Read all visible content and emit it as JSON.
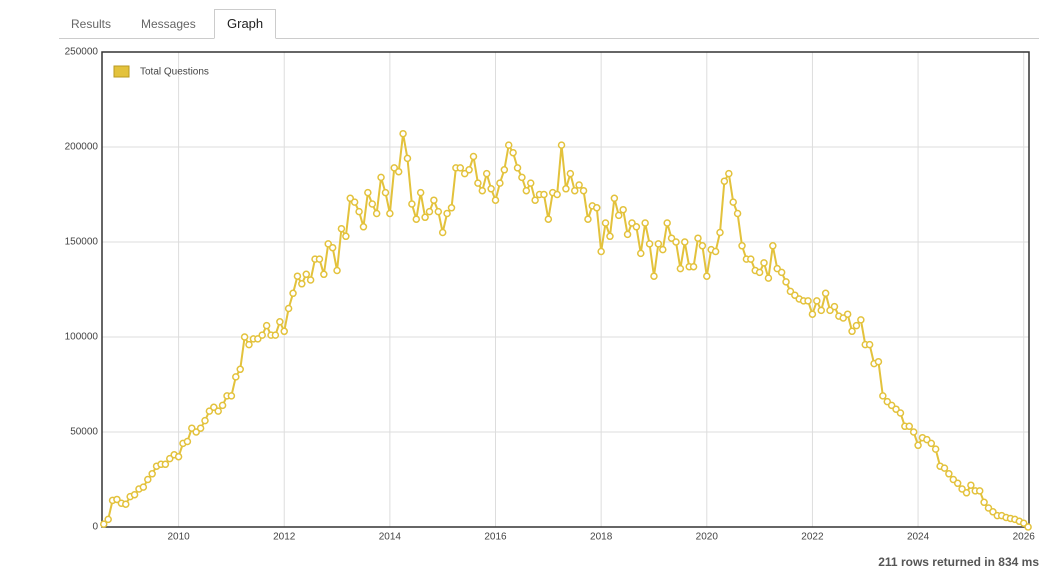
{
  "tabs": [
    "Results",
    "Messages",
    "Graph"
  ],
  "chart_data": {
    "type": "line",
    "x": [
      2008.583,
      2008.667,
      2008.75,
      2008.833,
      2008.917,
      2009,
      2009.083,
      2009.167,
      2009.25,
      2009.333,
      2009.417,
      2009.5,
      2009.583,
      2009.667,
      2009.75,
      2009.833,
      2009.917,
      2010,
      2010.083,
      2010.167,
      2010.25,
      2010.333,
      2010.417,
      2010.5,
      2010.583,
      2010.667,
      2010.75,
      2010.833,
      2010.917,
      2011,
      2011.083,
      2011.167,
      2011.25,
      2011.333,
      2011.417,
      2011.5,
      2011.583,
      2011.667,
      2011.75,
      2011.833,
      2011.917,
      2012,
      2012.083,
      2012.167,
      2012.25,
      2012.333,
      2012.417,
      2012.5,
      2012.583,
      2012.667,
      2012.75,
      2012.833,
      2012.917,
      2013,
      2013.083,
      2013.167,
      2013.25,
      2013.333,
      2013.417,
      2013.5,
      2013.583,
      2013.667,
      2013.75,
      2013.833,
      2013.917,
      2014,
      2014.083,
      2014.167,
      2014.25,
      2014.333,
      2014.417,
      2014.5,
      2014.583,
      2014.667,
      2014.75,
      2014.833,
      2014.917,
      2015,
      2015.083,
      2015.167,
      2015.25,
      2015.333,
      2015.417,
      2015.5,
      2015.583,
      2015.667,
      2015.75,
      2015.833,
      2015.917,
      2016,
      2016.083,
      2016.167,
      2016.25,
      2016.333,
      2016.417,
      2016.5,
      2016.583,
      2016.667,
      2016.75,
      2016.833,
      2016.917,
      2017,
      2017.083,
      2017.167,
      2017.25,
      2017.333,
      2017.417,
      2017.5,
      2017.583,
      2017.667,
      2017.75,
      2017.833,
      2017.917,
      2018,
      2018.083,
      2018.167,
      2018.25,
      2018.333,
      2018.417,
      2018.5,
      2018.583,
      2018.667,
      2018.75,
      2018.833,
      2018.917,
      2019,
      2019.083,
      2019.167,
      2019.25,
      2019.333,
      2019.417,
      2019.5,
      2019.583,
      2019.667,
      2019.75,
      2019.833,
      2019.917,
      2020,
      2020.083,
      2020.167,
      2020.25,
      2020.333,
      2020.417,
      2020.5,
      2020.583,
      2020.667,
      2020.75,
      2020.833,
      2020.917,
      2021,
      2021.083,
      2021.167,
      2021.25,
      2021.333,
      2021.417,
      2021.5,
      2021.583,
      2021.667,
      2021.75,
      2021.833,
      2021.917,
      2022,
      2022.083,
      2022.167,
      2022.25,
      2022.333,
      2022.417,
      2022.5,
      2022.583,
      2022.667,
      2022.75,
      2022.833,
      2022.917,
      2023,
      2023.083,
      2023.167,
      2023.25,
      2023.333,
      2023.417,
      2023.5,
      2023.583,
      2023.667,
      2023.75,
      2023.833,
      2023.917,
      2024,
      2024.083,
      2024.167,
      2024.25,
      2024.333,
      2024.417,
      2024.5,
      2024.583,
      2024.667,
      2024.75,
      2024.833,
      2024.917,
      2025,
      2025.083,
      2025.167,
      2025.25,
      2025.333,
      2025.417,
      2025.5,
      2025.583,
      2025.667,
      2025.75,
      2025.833,
      2025.917,
      2026,
      2026.083
    ],
    "series": [
      {
        "name": "Total Questions",
        "color": "#e3c23c",
        "values": [
          1500,
          4000,
          14000,
          14500,
          12500,
          12000,
          16000,
          17000,
          20000,
          21000,
          25000,
          28000,
          32000,
          33000,
          33000,
          36000,
          38000,
          37000,
          44000,
          45000,
          52000,
          50000,
          52000,
          56000,
          61000,
          63000,
          61000,
          64000,
          69000,
          69000,
          79000,
          83000,
          100000,
          96000,
          99000,
          99000,
          101000,
          106000,
          101000,
          101000,
          108000,
          103000,
          115000,
          123000,
          132000,
          128000,
          133000,
          130000,
          141000,
          141000,
          133000,
          149000,
          147000,
          135000,
          157000,
          153000,
          173000,
          171000,
          166000,
          158000,
          176000,
          170000,
          165000,
          184000,
          176000,
          165000,
          189000,
          187000,
          207000,
          194000,
          170000,
          162000,
          176000,
          163000,
          166000,
          172000,
          166000,
          155000,
          165000,
          168000,
          189000,
          189000,
          186000,
          188000,
          195000,
          181000,
          177000,
          186000,
          178000,
          172000,
          181000,
          188000,
          201000,
          197000,
          189000,
          184000,
          177000,
          181000,
          172000,
          175000,
          175000,
          162000,
          176000,
          175000,
          201000,
          178000,
          186000,
          177000,
          180000,
          177000,
          162000,
          169000,
          168000,
          145000,
          160000,
          153000,
          173000,
          164000,
          167000,
          154000,
          160000,
          158000,
          144000,
          160000,
          149000,
          132000,
          149000,
          146000,
          160000,
          152000,
          150000,
          136000,
          150000,
          137000,
          137000,
          152000,
          148000,
          132000,
          146000,
          145000,
          155000,
          182000,
          186000,
          171000,
          165000,
          148000,
          141000,
          141000,
          135000,
          134000,
          139000,
          131000,
          148000,
          136000,
          134000,
          129000,
          124000,
          122000,
          120000,
          119000,
          119000,
          112000,
          119000,
          114000,
          123000,
          114000,
          116000,
          111000,
          110000,
          112000,
          103000,
          106000,
          109000,
          96000,
          96000,
          86000,
          87000,
          69000,
          66000,
          64000,
          62000,
          60000,
          53000,
          53000,
          50000,
          43000,
          47000,
          46000,
          44000,
          41000,
          32000,
          31000,
          28000,
          25000,
          23000,
          20000,
          18000,
          22000,
          19000,
          19000,
          13000,
          10000,
          8000,
          6000,
          6000,
          5000,
          4500,
          4000,
          3000,
          2000,
          0
        ]
      }
    ],
    "xlim": [
      2008.55,
      2026.1
    ],
    "xticks": [
      2010,
      2012,
      2014,
      2016,
      2018,
      2020,
      2022,
      2024,
      2026
    ],
    "ylim": [
      0,
      250000
    ],
    "yticks": [
      0,
      50000,
      100000,
      150000,
      200000,
      250000
    ],
    "grid": true,
    "legend": "top-left"
  },
  "footer": "211 rows returned in 834 ms"
}
